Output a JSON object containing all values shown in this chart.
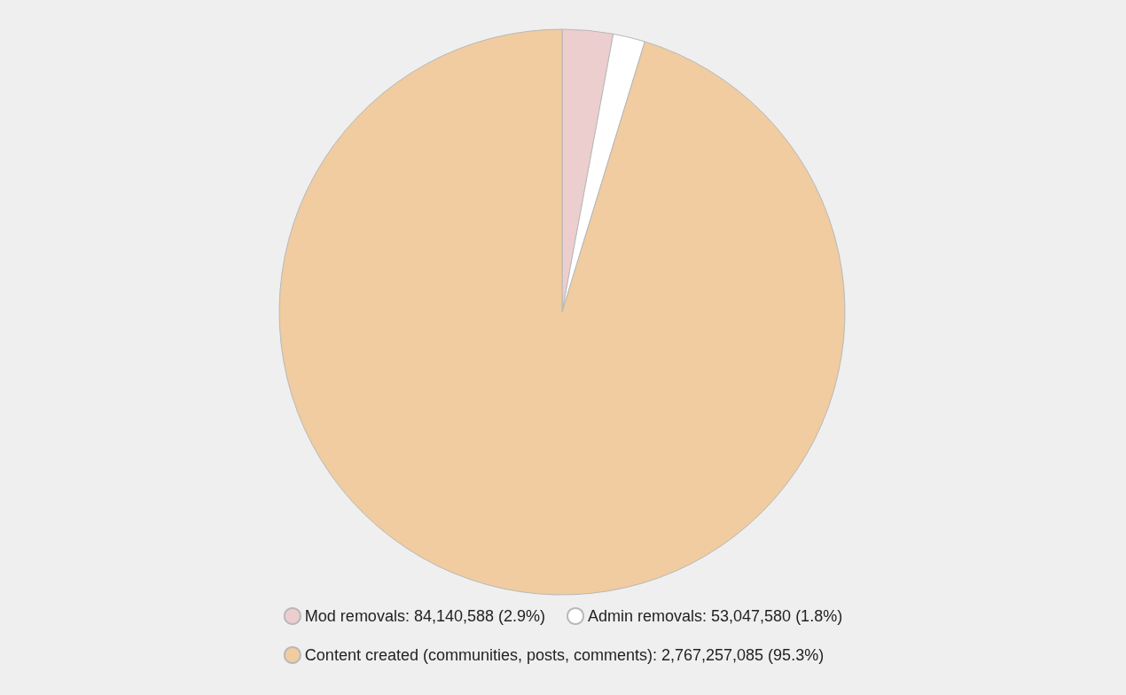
{
  "chart_data": {
    "type": "pie",
    "categories": [
      "Mod removals",
      "Admin removals",
      "Content created (communities, posts, comments)"
    ],
    "values": [
      84140588,
      53047580,
      2767257085
    ],
    "value_labels": [
      "84,140,588 (2.9%)",
      "53,047,580 (1.8%)",
      "2,767,257,085 (95.3%)"
    ],
    "colors": [
      "#eccece",
      "#ffffff",
      "#f0cca0"
    ],
    "legend": "bottom"
  }
}
